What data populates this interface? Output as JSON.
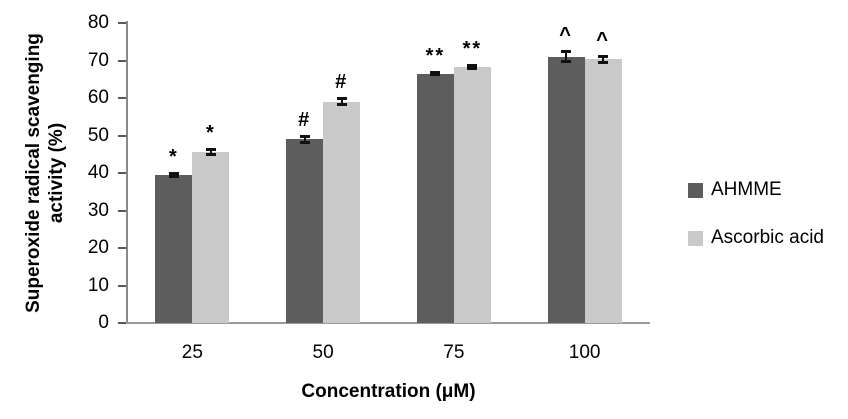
{
  "chart_data": {
    "type": "bar",
    "title": "",
    "categories": [
      "25",
      "50",
      "75",
      "100"
    ],
    "series": [
      {
        "name": "AHMME",
        "color": "#5d5d5d",
        "values": [
          39.5,
          49,
          66.5,
          71
        ],
        "errors": [
          0.5,
          0.9,
          0.4,
          1.5
        ],
        "annotations": [
          "*",
          "#",
          "**",
          "^"
        ]
      },
      {
        "name": "Ascorbic acid",
        "color": "#c9c9c9",
        "values": [
          45.5,
          59,
          68.3,
          70.3
        ],
        "errors": [
          0.8,
          0.9,
          0.5,
          1.0
        ],
        "annotations": [
          "*",
          "#",
          "**",
          "^"
        ]
      }
    ],
    "xlabel": "Concentration (μM)",
    "ylabel": "Superoxide radical scavenging activity (%)",
    "ylabel_lines": [
      "Superoxide radical scavenging",
      "activity (%)"
    ],
    "ylim": [
      0,
      80
    ],
    "yticks": [
      0,
      10,
      20,
      30,
      40,
      50,
      60,
      70,
      80
    ],
    "grid": false,
    "legend_position": "right",
    "colors": {
      "error_bar": "#111111",
      "y_axis_line": "#898989",
      "x_baseline": "#9a9a9a",
      "tick_mark": "#595959",
      "text": "#000000"
    }
  }
}
